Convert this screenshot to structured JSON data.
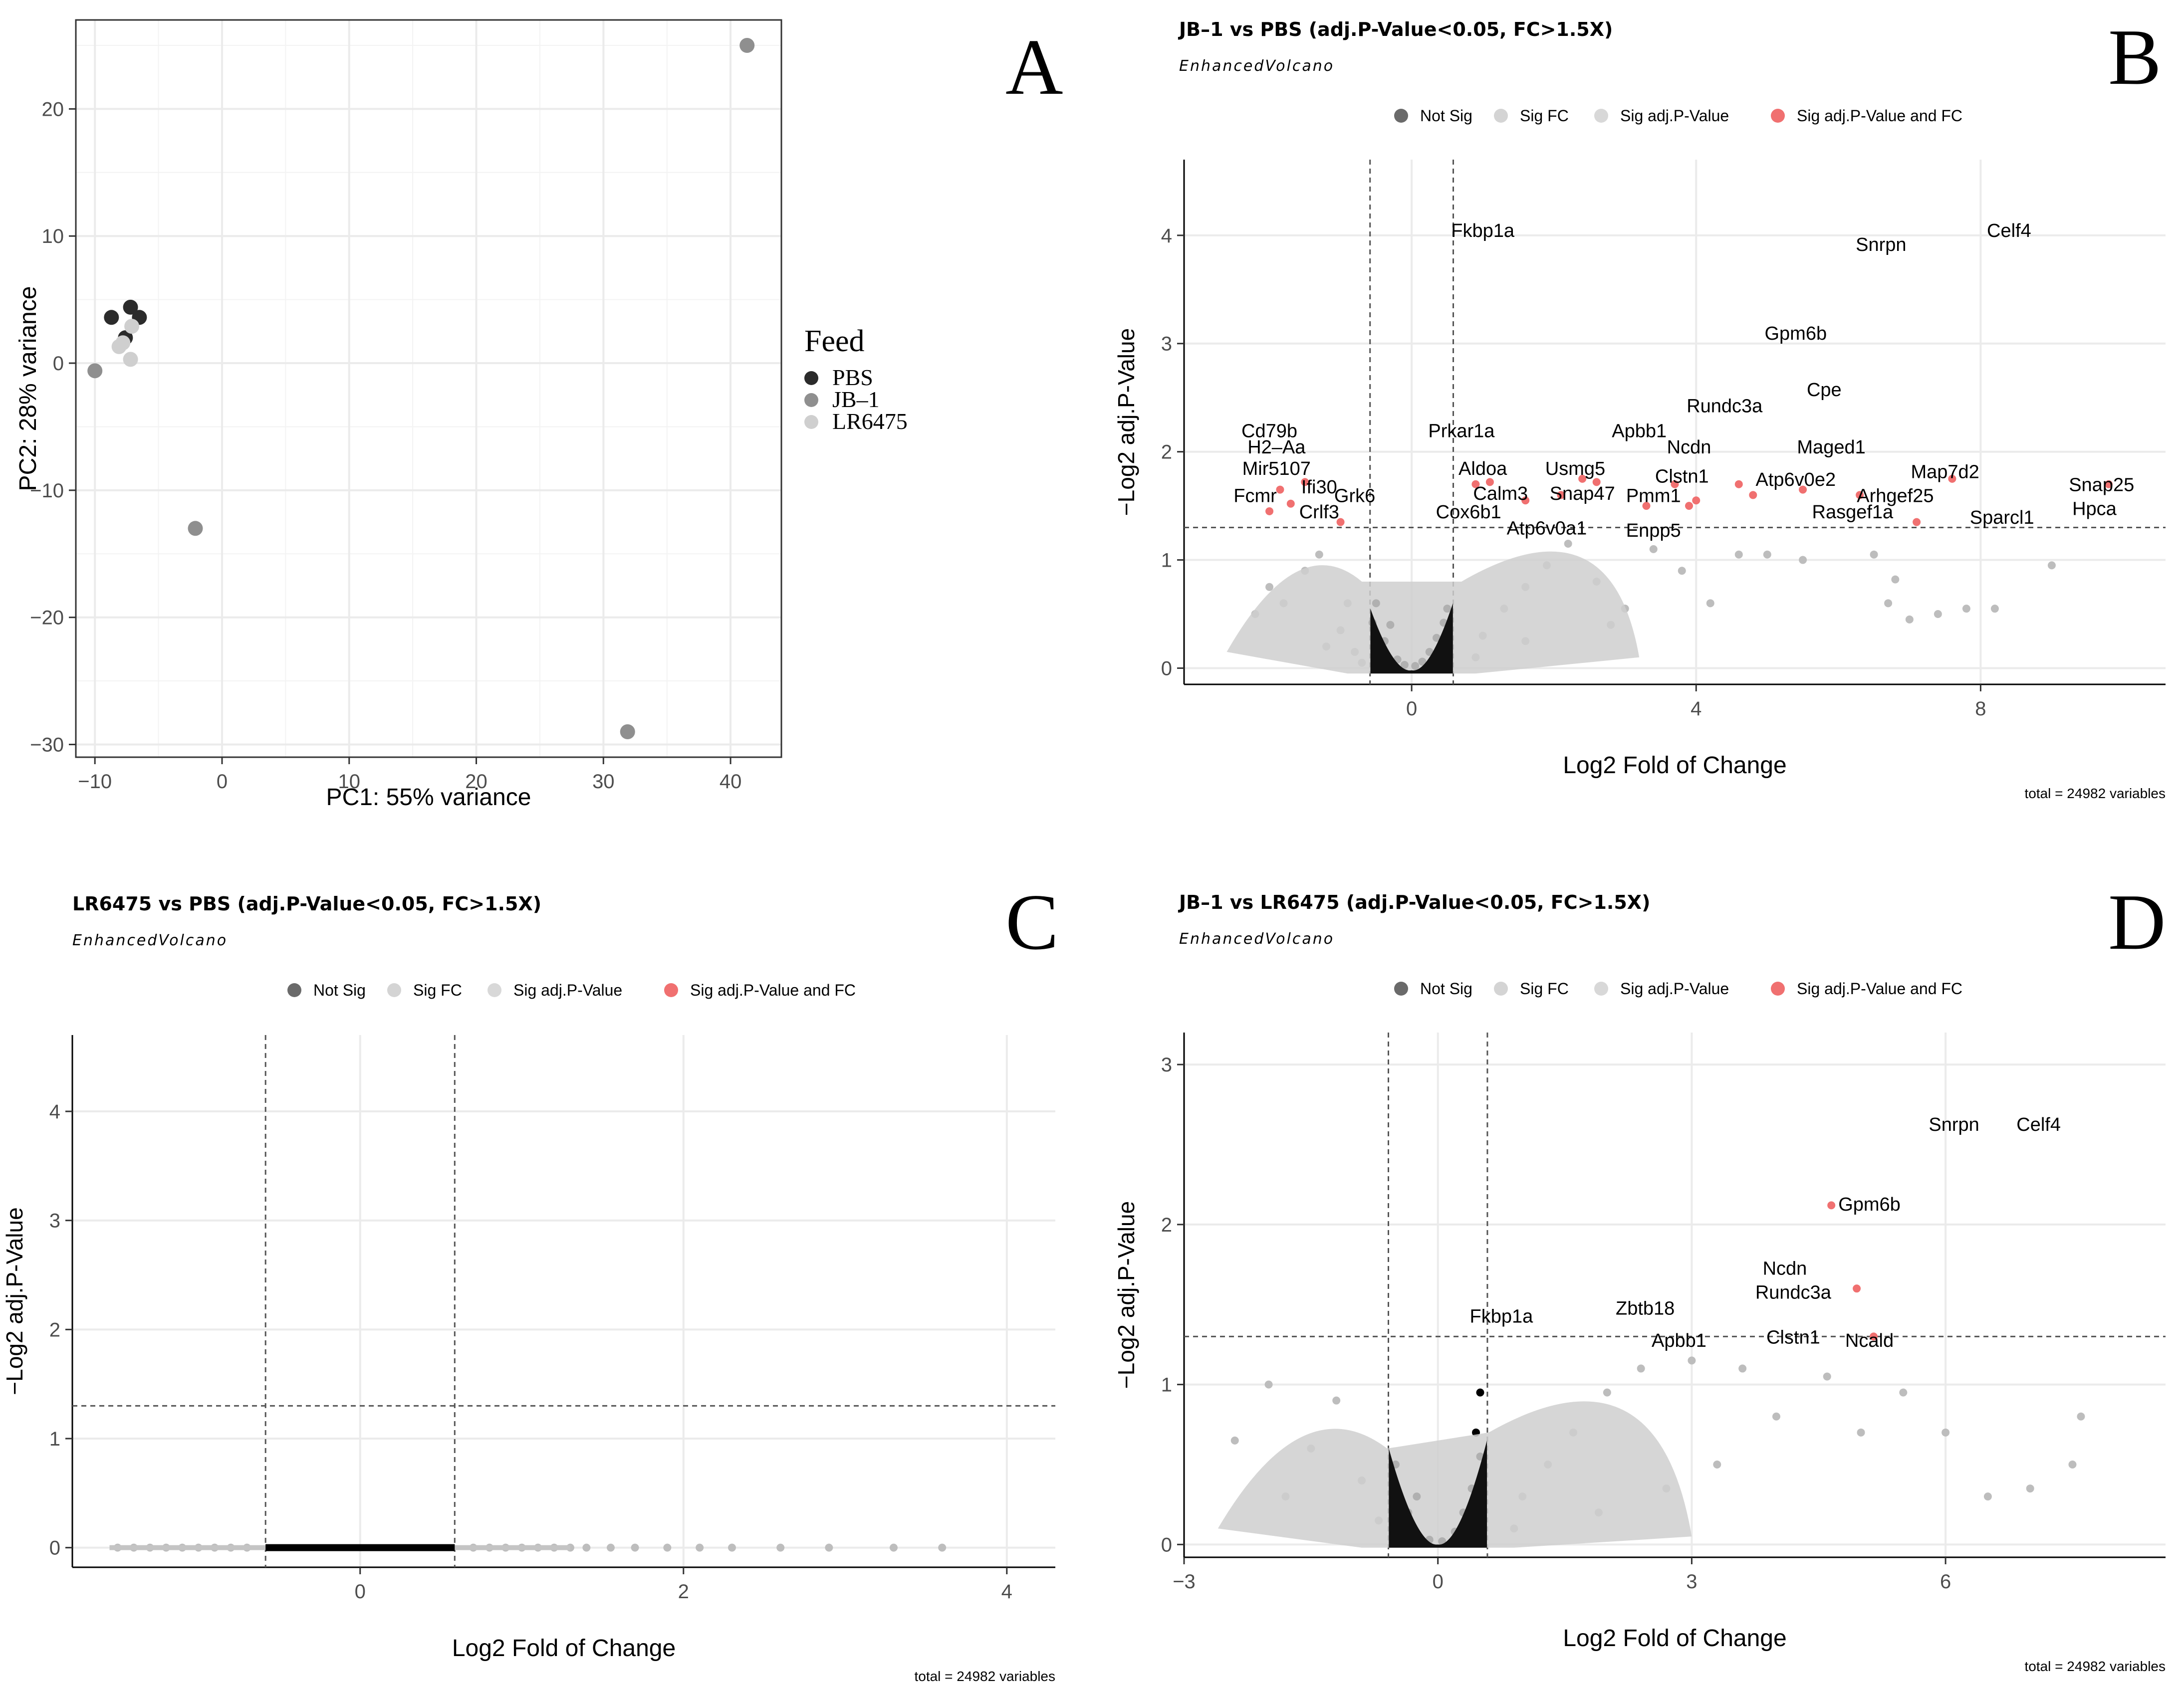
{
  "panel_letters": {
    "a": "A",
    "b": "B",
    "c": "C",
    "d": "D"
  },
  "colors": {
    "not_sig": "#000000",
    "sig_fc": "#bdbdbd",
    "sig_p": "#d3d3d3",
    "sig_both": "#f07070",
    "grid": "#ebebeb"
  },
  "chart_data": [
    {
      "id": "A",
      "type": "scatter",
      "title": "",
      "xlabel": "PC1: 55% variance",
      "ylabel": "PC2: 28% variance",
      "xlim": [
        -11.5,
        44
      ],
      "ylim": [
        -31,
        27
      ],
      "xticks": [
        -10,
        0,
        10,
        20,
        30,
        40
      ],
      "yticks": [
        -30,
        -20,
        -10,
        0,
        10,
        20
      ],
      "legend": {
        "title": "Feed",
        "position": "right",
        "entries": [
          {
            "name": "PBS",
            "color": "#2b2b2b"
          },
          {
            "name": "JB–1",
            "color": "#8f8f8f"
          },
          {
            "name": "LR6475",
            "color": "#cfcfcf"
          }
        ]
      },
      "points": [
        {
          "x": -8.7,
          "y": 3.6,
          "group": "PBS"
        },
        {
          "x": -7.2,
          "y": 4.4,
          "group": "PBS"
        },
        {
          "x": -6.5,
          "y": 3.6,
          "group": "PBS"
        },
        {
          "x": -7.6,
          "y": 2.0,
          "group": "PBS"
        },
        {
          "x": -10.0,
          "y": -0.6,
          "group": "JB–1"
        },
        {
          "x": -2.1,
          "y": -13.0,
          "group": "JB–1"
        },
        {
          "x": 31.9,
          "y": -29.0,
          "group": "JB–1"
        },
        {
          "x": 41.3,
          "y": 25.0,
          "group": "JB–1"
        },
        {
          "x": -8.1,
          "y": 1.3,
          "group": "LR6475"
        },
        {
          "x": -7.1,
          "y": 2.9,
          "group": "LR6475"
        },
        {
          "x": -7.2,
          "y": 0.3,
          "group": "LR6475"
        },
        {
          "x": -7.8,
          "y": 1.6,
          "group": "LR6475"
        }
      ]
    },
    {
      "id": "B",
      "type": "scatter",
      "title": "JB–1 vs PBS (adj.P-Value<0.05, FC>1.5X)",
      "subtitle": "EnhancedVolcano",
      "xlabel": "Log2 Fold of Change",
      "ylabel": "−Log2 adj.P-Value",
      "caption": "total = 24982 variables",
      "xlim": [
        -3.2,
        10.6
      ],
      "ylim": [
        -0.15,
        4.7
      ],
      "xticks": [
        0,
        4,
        8
      ],
      "yticks": [
        0,
        1,
        2,
        3,
        4
      ],
      "fc_cutoff": 0.585,
      "p_cutoff": 1.3,
      "legend": {
        "position": "top",
        "entries": [
          "Not Sig",
          "Sig FC",
          "Sig adj.P-Value",
          "Sig adj.P-Value and FC"
        ]
      },
      "ns_points": [
        [
          -0.45,
          0.12
        ],
        [
          -0.38,
          0.25
        ],
        [
          -0.3,
          0.4
        ],
        [
          -0.2,
          0.08
        ],
        [
          -0.1,
          0.03
        ],
        [
          0.05,
          0.02
        ],
        [
          0.15,
          0.06
        ],
        [
          0.25,
          0.15
        ],
        [
          0.35,
          0.28
        ],
        [
          0.45,
          0.42
        ],
        [
          0.5,
          0.55
        ],
        [
          -0.5,
          0.6
        ],
        [
          -0.55,
          0.42
        ],
        [
          0.4,
          0.05
        ],
        [
          -0.25,
          0.05
        ]
      ],
      "fc_points": [
        [
          -1.5,
          0.9
        ],
        [
          -1.8,
          0.6
        ],
        [
          -2.0,
          0.75
        ],
        [
          -1.3,
          1.05
        ],
        [
          -1.0,
          0.35
        ],
        [
          -0.9,
          0.6
        ],
        [
          -1.2,
          0.2
        ],
        [
          -0.8,
          0.15
        ],
        [
          -2.2,
          0.5
        ],
        [
          1.0,
          0.3
        ],
        [
          1.3,
          0.55
        ],
        [
          1.6,
          0.75
        ],
        [
          1.9,
          0.95
        ],
        [
          2.2,
          1.15
        ],
        [
          2.6,
          0.8
        ],
        [
          3.0,
          0.55
        ],
        [
          3.4,
          1.1
        ],
        [
          3.8,
          0.9
        ],
        [
          4.6,
          1.05
        ],
        [
          5.0,
          1.05
        ],
        [
          5.5,
          1.0
        ],
        [
          6.5,
          1.05
        ],
        [
          6.7,
          0.6
        ],
        [
          6.8,
          0.82
        ],
        [
          7.0,
          0.45
        ],
        [
          7.4,
          0.5
        ],
        [
          7.8,
          0.55
        ],
        [
          8.2,
          0.55
        ],
        [
          9.0,
          0.95
        ],
        [
          4.2,
          0.6
        ],
        [
          2.8,
          0.4
        ],
        [
          1.6,
          0.25
        ],
        [
          0.9,
          0.1
        ],
        [
          -0.7,
          0.05
        ]
      ],
      "sig_points": [
        [
          -2.0,
          1.45
        ],
        [
          -1.7,
          1.52
        ],
        [
          -1.85,
          1.65
        ],
        [
          -1.0,
          1.35
        ],
        [
          -1.5,
          1.72
        ],
        [
          0.9,
          1.7
        ],
        [
          1.1,
          1.72
        ],
        [
          1.6,
          1.55
        ],
        [
          2.1,
          1.6
        ],
        [
          2.4,
          1.75
        ],
        [
          2.6,
          1.72
        ],
        [
          3.3,
          1.5
        ],
        [
          3.7,
          1.7
        ],
        [
          3.9,
          1.5
        ],
        [
          4.0,
          1.55
        ],
        [
          4.6,
          1.7
        ],
        [
          4.8,
          1.6
        ],
        [
          5.5,
          1.65
        ],
        [
          6.3,
          1.6
        ],
        [
          7.1,
          1.35
        ],
        [
          7.6,
          1.75
        ],
        [
          9.8,
          1.7
        ]
      ],
      "labels": [
        {
          "text": "Fkbp1a",
          "x": 1.0,
          "y": 4.05
        },
        {
          "text": "Snrpn",
          "x": 6.6,
          "y": 3.92
        },
        {
          "text": "Celf4",
          "x": 8.4,
          "y": 4.05
        },
        {
          "text": "Gpm6b",
          "x": 5.4,
          "y": 3.1
        },
        {
          "text": "Cpe",
          "x": 5.8,
          "y": 2.58
        },
        {
          "text": "Rundc3a",
          "x": 4.4,
          "y": 2.43
        },
        {
          "text": "Cd79b",
          "x": -2.0,
          "y": 2.2
        },
        {
          "text": "H2–Aa",
          "x": -1.9,
          "y": 2.05
        },
        {
          "text": "Prkar1a",
          "x": 0.7,
          "y": 2.2
        },
        {
          "text": "Apbb1",
          "x": 3.2,
          "y": 2.2
        },
        {
          "text": "Ncdn",
          "x": 3.9,
          "y": 2.05
        },
        {
          "text": "Maged1",
          "x": 5.9,
          "y": 2.05
        },
        {
          "text": "Mir5107",
          "x": -1.9,
          "y": 1.85
        },
        {
          "text": "Aldoa",
          "x": 1.0,
          "y": 1.85
        },
        {
          "text": "Usmg5",
          "x": 2.3,
          "y": 1.85
        },
        {
          "text": "Clstn1",
          "x": 3.8,
          "y": 1.78
        },
        {
          "text": "Atp6v0e2",
          "x": 5.4,
          "y": 1.75
        },
        {
          "text": "Map7d2",
          "x": 7.5,
          "y": 1.82
        },
        {
          "text": "Ifi30",
          "x": -1.3,
          "y": 1.68
        },
        {
          "text": "Snap25",
          "x": 9.7,
          "y": 1.7
        },
        {
          "text": "Fcmr",
          "x": -2.2,
          "y": 1.6
        },
        {
          "text": "Grk6",
          "x": -0.8,
          "y": 1.6
        },
        {
          "text": "Calm3",
          "x": 1.25,
          "y": 1.62
        },
        {
          "text": "Snap47",
          "x": 2.4,
          "y": 1.62
        },
        {
          "text": "Pmm1",
          "x": 3.4,
          "y": 1.6
        },
        {
          "text": "Arhgef25",
          "x": 6.8,
          "y": 1.6
        },
        {
          "text": "Hpca",
          "x": 9.6,
          "y": 1.48
        },
        {
          "text": "Crlf3",
          "x": -1.3,
          "y": 1.45
        },
        {
          "text": "Cox6b1",
          "x": 0.8,
          "y": 1.45
        },
        {
          "text": "Rasgef1a",
          "x": 6.2,
          "y": 1.45
        },
        {
          "text": "Sparcl1",
          "x": 8.3,
          "y": 1.4
        },
        {
          "text": "Atp6v0a1",
          "x": 1.9,
          "y": 1.3
        },
        {
          "text": "Enpp5",
          "x": 3.4,
          "y": 1.28
        }
      ]
    },
    {
      "id": "C",
      "type": "scatter",
      "title": "LR6475 vs PBS (adj.P-Value<0.05, FC>1.5X)",
      "subtitle": "EnhancedVolcano",
      "xlabel": "Log2 Fold of Change",
      "ylabel": "−Log2 adj.P-Value",
      "caption": "total = 24982 variables",
      "xlim": [
        -1.78,
        4.3
      ],
      "ylim": [
        -0.18,
        4.7
      ],
      "xticks": [
        0,
        2,
        4
      ],
      "yticks": [
        0,
        1,
        2,
        3,
        4
      ],
      "fc_cutoff": 0.585,
      "p_cutoff": 1.3,
      "legend": {
        "position": "top",
        "entries": [
          "Not Sig",
          "Sig FC",
          "Sig adj.P-Value",
          "Sig adj.P-Value and FC"
        ]
      },
      "ns_points": [],
      "fc_points": [
        [
          -1.5,
          0
        ],
        [
          -1.3,
          0
        ],
        [
          -1.1,
          0
        ],
        [
          -1.0,
          0
        ],
        [
          -0.9,
          0
        ],
        [
          -0.8,
          0
        ],
        [
          -0.7,
          0
        ],
        [
          -1.2,
          0
        ],
        [
          -1.4,
          0
        ],
        [
          0.7,
          0
        ],
        [
          0.8,
          0
        ],
        [
          0.9,
          0
        ],
        [
          1.0,
          0
        ],
        [
          1.1,
          0
        ],
        [
          1.2,
          0
        ],
        [
          1.3,
          0
        ],
        [
          1.4,
          0
        ],
        [
          1.55,
          0
        ],
        [
          1.7,
          0
        ],
        [
          1.9,
          0
        ],
        [
          2.1,
          0
        ],
        [
          2.3,
          0
        ],
        [
          2.6,
          0
        ],
        [
          2.9,
          0
        ],
        [
          3.3,
          0
        ],
        [
          3.6,
          0
        ]
      ],
      "sig_points": [],
      "labels": []
    },
    {
      "id": "D",
      "type": "scatter",
      "title": "JB–1 vs LR6475 (adj.P-Value<0.05, FC>1.5X)",
      "subtitle": "EnhancedVolcano",
      "xlabel": "Log2 Fold of Change",
      "ylabel": "−Log2 adj.P-Value",
      "caption": "total = 24982 variables",
      "xlim": [
        -3.0,
        8.6
      ],
      "ylim": [
        -0.08,
        3.2
      ],
      "xticks": [
        -3,
        0,
        3,
        6
      ],
      "yticks": [
        0,
        1,
        2,
        3
      ],
      "fc_cutoff": 0.585,
      "p_cutoff": 1.3,
      "legend": {
        "position": "top",
        "entries": [
          "Not Sig",
          "Sig FC",
          "Sig adj.P-Value",
          "Sig adj.P-Value and FC"
        ]
      },
      "ns_points": [
        [
          -0.45,
          0.1
        ],
        [
          -0.35,
          0.2
        ],
        [
          -0.25,
          0.3
        ],
        [
          -0.1,
          0.03
        ],
        [
          0.05,
          0.02
        ],
        [
          0.2,
          0.08
        ],
        [
          0.3,
          0.2
        ],
        [
          0.4,
          0.35
        ],
        [
          0.5,
          0.55
        ],
        [
          -0.5,
          0.5
        ],
        [
          0.5,
          0.95
        ],
        [
          0.45,
          0.7
        ]
      ],
      "fc_points": [
        [
          -2.4,
          0.65
        ],
        [
          -2.0,
          1.0
        ],
        [
          -1.5,
          0.6
        ],
        [
          -1.2,
          0.9
        ],
        [
          -0.9,
          0.4
        ],
        [
          -1.8,
          0.3
        ],
        [
          -0.7,
          0.15
        ],
        [
          1.0,
          0.3
        ],
        [
          1.3,
          0.5
        ],
        [
          1.6,
          0.7
        ],
        [
          2.0,
          0.95
        ],
        [
          2.4,
          1.1
        ],
        [
          3.0,
          1.15
        ],
        [
          3.6,
          1.1
        ],
        [
          4.0,
          0.8
        ],
        [
          4.6,
          1.05
        ],
        [
          5.0,
          0.7
        ],
        [
          5.5,
          0.95
        ],
        [
          6.0,
          0.7
        ],
        [
          6.5,
          0.3
        ],
        [
          7.0,
          0.35
        ],
        [
          7.5,
          0.5
        ],
        [
          7.6,
          0.8
        ],
        [
          3.3,
          0.5
        ],
        [
          2.7,
          0.35
        ],
        [
          1.9,
          0.2
        ],
        [
          0.9,
          0.1
        ]
      ],
      "sig_points": [
        [
          4.65,
          2.12
        ],
        [
          4.95,
          1.6
        ],
        [
          5.15,
          1.3
        ]
      ],
      "labels": [
        {
          "text": "Snrpn",
          "x": 6.1,
          "y": 2.63
        },
        {
          "text": "Celf4",
          "x": 7.1,
          "y": 2.63
        },
        {
          "text": "Gpm6b",
          "x": 5.1,
          "y": 2.13
        },
        {
          "text": "Ncdn",
          "x": 4.1,
          "y": 1.73
        },
        {
          "text": "Rundc3a",
          "x": 4.2,
          "y": 1.58
        },
        {
          "text": "Fkbp1a",
          "x": 0.75,
          "y": 1.43
        },
        {
          "text": "Zbtb18",
          "x": 2.45,
          "y": 1.48
        },
        {
          "text": "Apbb1",
          "x": 2.85,
          "y": 1.28
        },
        {
          "text": "Clstn1",
          "x": 4.2,
          "y": 1.3
        },
        {
          "text": "Ncald",
          "x": 5.1,
          "y": 1.28
        }
      ]
    }
  ]
}
